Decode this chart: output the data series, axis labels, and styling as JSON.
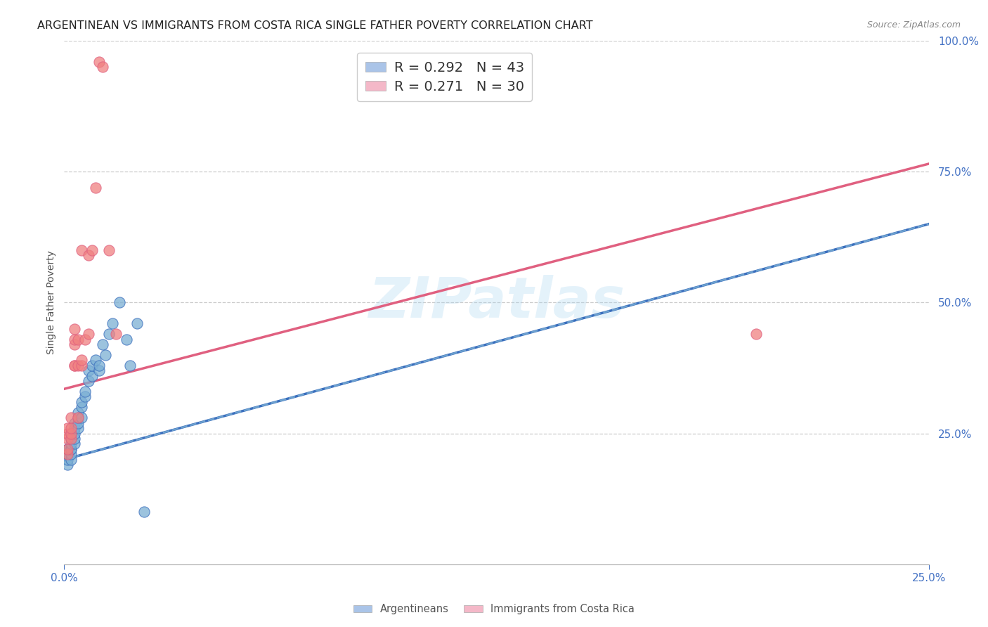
{
  "title": "ARGENTINEAN VS IMMIGRANTS FROM COSTA RICA SINGLE FATHER POVERTY CORRELATION CHART",
  "source": "Source: ZipAtlas.com",
  "ylabel": "Single Father Poverty",
  "watermark": "ZIPatlas",
  "x_min": 0.0,
  "x_max": 0.25,
  "y_min": 0.0,
  "y_max": 1.0,
  "legend_items": [
    {
      "label_r": "R = 0.292",
      "label_n": "N = 43",
      "color": "#aac4e8"
    },
    {
      "label_r": "R = 0.271",
      "label_n": "N = 30",
      "color": "#f4b8c8"
    }
  ],
  "argentineans": {
    "x": [
      0.001,
      0.001,
      0.001,
      0.001,
      0.001,
      0.002,
      0.002,
      0.002,
      0.002,
      0.002,
      0.002,
      0.002,
      0.002,
      0.003,
      0.003,
      0.003,
      0.003,
      0.003,
      0.004,
      0.004,
      0.004,
      0.004,
      0.005,
      0.005,
      0.005,
      0.006,
      0.006,
      0.007,
      0.007,
      0.008,
      0.008,
      0.009,
      0.01,
      0.01,
      0.011,
      0.012,
      0.013,
      0.014,
      0.016,
      0.018,
      0.019,
      0.021,
      0.023
    ],
    "y": [
      0.19,
      0.2,
      0.21,
      0.22,
      0.22,
      0.2,
      0.21,
      0.22,
      0.22,
      0.23,
      0.24,
      0.25,
      0.25,
      0.23,
      0.24,
      0.25,
      0.26,
      0.27,
      0.26,
      0.27,
      0.28,
      0.29,
      0.28,
      0.3,
      0.31,
      0.32,
      0.33,
      0.35,
      0.37,
      0.36,
      0.38,
      0.39,
      0.37,
      0.38,
      0.42,
      0.4,
      0.44,
      0.46,
      0.5,
      0.43,
      0.38,
      0.46,
      0.1
    ],
    "color": "#7bafd4",
    "trendline_color": "#3a6ebd",
    "trendline_style": "-",
    "trend_x0": 0.0,
    "trend_y0": 0.2,
    "trend_x1": 0.25,
    "trend_y1": 0.65
  },
  "costa_rica": {
    "x": [
      0.001,
      0.001,
      0.001,
      0.001,
      0.001,
      0.002,
      0.002,
      0.002,
      0.002,
      0.003,
      0.003,
      0.003,
      0.003,
      0.003,
      0.004,
      0.004,
      0.004,
      0.005,
      0.005,
      0.005,
      0.006,
      0.007,
      0.007,
      0.008,
      0.009,
      0.01,
      0.011,
      0.013,
      0.015,
      0.2
    ],
    "y": [
      0.21,
      0.22,
      0.24,
      0.25,
      0.26,
      0.24,
      0.25,
      0.26,
      0.28,
      0.38,
      0.38,
      0.42,
      0.43,
      0.45,
      0.28,
      0.38,
      0.43,
      0.38,
      0.39,
      0.6,
      0.43,
      0.44,
      0.59,
      0.6,
      0.72,
      0.96,
      0.95,
      0.6,
      0.44,
      0.44
    ],
    "color": "#f08080",
    "trendline_color": "#e06080",
    "trendline_style": "-",
    "trend_x0": 0.0,
    "trend_y0": 0.335,
    "trend_x1": 0.25,
    "trend_y1": 0.765
  },
  "background_color": "#ffffff",
  "grid_color": "#cccccc",
  "title_color": "#222222",
  "axis_label_color": "#555555"
}
